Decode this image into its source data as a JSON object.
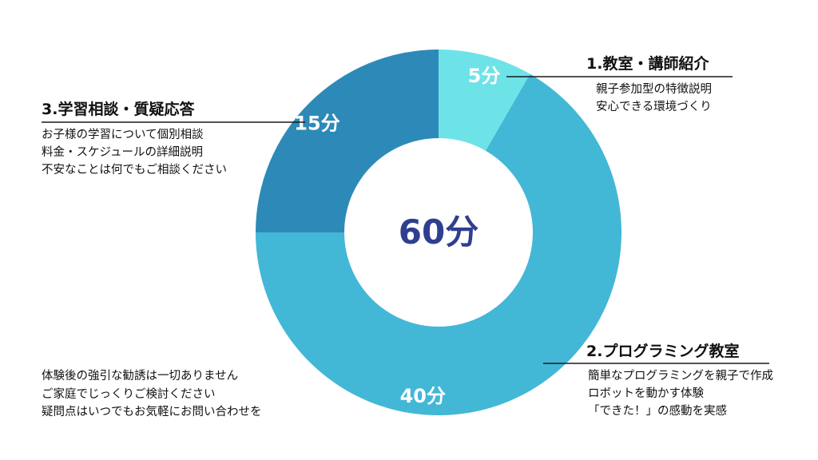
{
  "chart_data": {
    "type": "pie",
    "donut": true,
    "center_label": "60分",
    "slices": [
      {
        "label": "1.教室・講師紹介",
        "value": 5,
        "value_label": "5分",
        "color": "#6de3e8"
      },
      {
        "label": "2.プログラミング教室",
        "value": 40,
        "value_label": "40分",
        "color": "#43b7d6"
      },
      {
        "label": "3.学習相談・質疑応答",
        "value": 15,
        "value_label": "15分",
        "color": "#2d8ab8"
      }
    ]
  },
  "colors": {
    "center_text": "#2f3f8f",
    "leader_line": "#1a1a1a"
  },
  "callouts": {
    "intro": {
      "title": "1.教室・講師紹介",
      "lines": [
        "親子参加型の特徴説明",
        "安心できる環境づくり"
      ]
    },
    "programming": {
      "title": "2.プログラミング教室",
      "lines": [
        "簡単なプログラミングを親子で作成",
        "ロボットを動かす体験",
        "「できた！」の感動を実感"
      ]
    },
    "consult": {
      "title": "3.学習相談・質疑応答",
      "lines": [
        "お子様の学習について個別相談",
        "料金・スケジュールの詳細説明",
        "不安なことは何でもご相談ください"
      ]
    }
  },
  "notes": [
    "体験後の強引な勧誘は一切ありません",
    "ご家庭でじっくりご検討ください",
    "疑問点はいつでもお気軽にお問い合わせを"
  ]
}
